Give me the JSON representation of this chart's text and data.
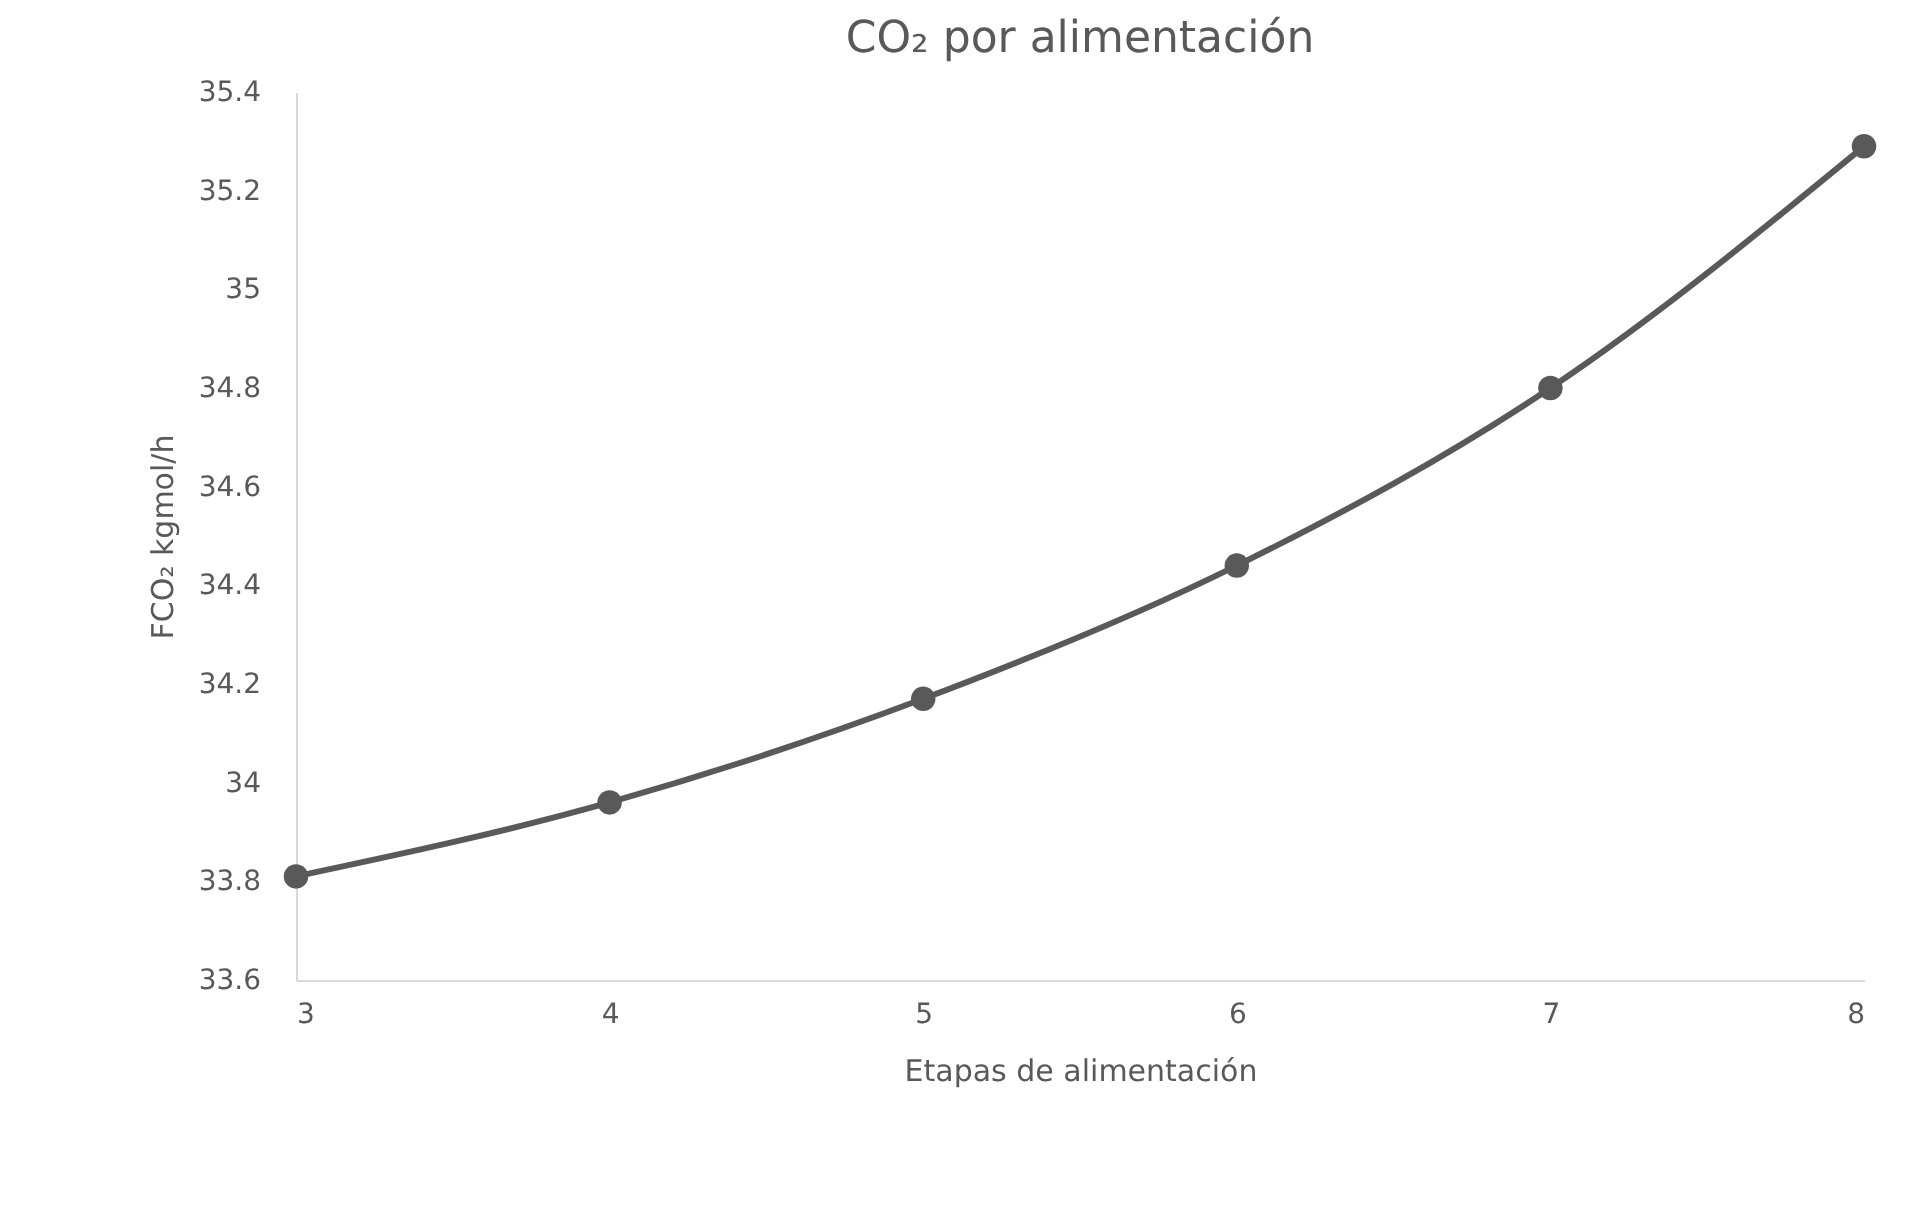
{
  "chart_data": {
    "type": "line",
    "title": "CO₂ por alimentación",
    "xlabel": "Etapas de alimentación",
    "ylabel": "FCO₂ kgmol/h",
    "x": [
      3,
      4,
      5,
      6,
      7,
      8
    ],
    "series": [
      {
        "color": "#595959",
        "values": [
          33.81,
          33.96,
          34.17,
          34.44,
          34.8,
          35.29
        ]
      }
    ],
    "xlim": [
      3,
      8
    ],
    "xticks": [
      3,
      4,
      5,
      6,
      7,
      8
    ],
    "ylim": [
      33.6,
      35.4
    ],
    "yticks": [
      33.6,
      33.8,
      34,
      34.2,
      34.4,
      34.6,
      34.8,
      35,
      35.2,
      35.4
    ],
    "grid": false,
    "marker": "circle",
    "line_style": "solid"
  }
}
